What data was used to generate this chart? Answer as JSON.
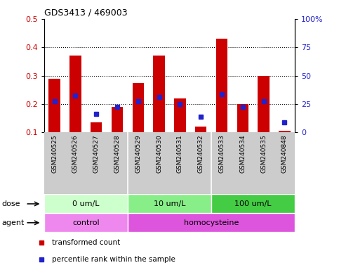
{
  "title": "GDS3413 / 469003",
  "samples": [
    "GSM240525",
    "GSM240526",
    "GSM240527",
    "GSM240528",
    "GSM240529",
    "GSM240530",
    "GSM240531",
    "GSM240532",
    "GSM240533",
    "GSM240534",
    "GSM240535",
    "GSM240848"
  ],
  "transformed_count": [
    0.29,
    0.37,
    0.135,
    0.19,
    0.275,
    0.37,
    0.22,
    0.12,
    0.43,
    0.2,
    0.3,
    0.105
  ],
  "percentile_rank": [
    0.21,
    0.23,
    0.165,
    0.19,
    0.21,
    0.225,
    0.2,
    0.155,
    0.235,
    0.19,
    0.21,
    0.135
  ],
  "ylim_left": [
    0.1,
    0.5
  ],
  "ylim_right": [
    0,
    100
  ],
  "yticks_left": [
    0.1,
    0.2,
    0.3,
    0.4,
    0.5
  ],
  "yticks_right": [
    0,
    25,
    50,
    75,
    100
  ],
  "ytick_labels_right": [
    "0",
    "25",
    "50",
    "75",
    "100%"
  ],
  "grid_values": [
    0.2,
    0.3,
    0.4
  ],
  "bar_color": "#cc0000",
  "dot_color": "#2222cc",
  "dose_groups": [
    {
      "label": "0 um/L",
      "start": 0,
      "end": 4,
      "color": "#ccffcc"
    },
    {
      "label": "10 um/L",
      "start": 4,
      "end": 8,
      "color": "#88ee88"
    },
    {
      "label": "100 um/L",
      "start": 8,
      "end": 12,
      "color": "#44cc44"
    }
  ],
  "agent_groups": [
    {
      "label": "control",
      "start": 0,
      "end": 4,
      "color": "#ee88ee"
    },
    {
      "label": "homocysteine",
      "start": 4,
      "end": 12,
      "color": "#dd55dd"
    }
  ],
  "legend_items": [
    {
      "label": "transformed count",
      "color": "#cc0000"
    },
    {
      "label": "percentile rank within the sample",
      "color": "#2222cc"
    }
  ],
  "dose_label": "dose",
  "agent_label": "agent",
  "bar_bottom": 0.1,
  "xlabel_bg": "#cccccc",
  "group_dividers": [
    3.5,
    7.5
  ]
}
